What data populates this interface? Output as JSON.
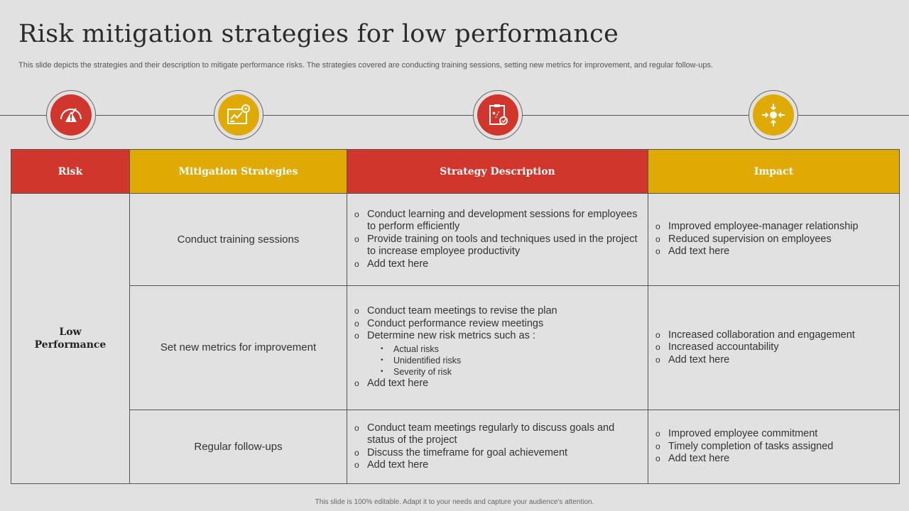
{
  "title": "Risk mitigation strategies for low performance",
  "subtitle": "This slide depicts the strategies and their description to mitigate performance risks. The strategies covered are conducting training sessions, setting new metrics for improvement, and regular follow-ups.",
  "colors": {
    "red": "#d0362b",
    "gold": "#e0aa05",
    "background": "#e1e1e1"
  },
  "icons": [
    "speedometer-warning-icon",
    "gear-board-icon",
    "clipboard-search-icon",
    "target-arrows-icon"
  ],
  "table": {
    "headers": {
      "risk": "Risk",
      "strategies": "Mitigation Strategies",
      "description": "Strategy Description",
      "impact": "Impact"
    },
    "risk": {
      "line1": "Low",
      "line2": "Performance"
    },
    "rows": [
      {
        "strategy": "Conduct training sessions",
        "description": [
          "Conduct learning and development sessions for employees to perform efficiently",
          "Provide training on tools and techniques used in the project to increase employee productivity",
          "Add text here"
        ],
        "impact": [
          "Improved employee-manager relationship",
          "Reduced supervision on employees",
          "Add text here"
        ]
      },
      {
        "strategy": "Set new metrics for improvement",
        "description": [
          "Conduct team meetings to revise the plan",
          "Conduct performance review meetings",
          "Determine new risk metrics such as :",
          "Add text here"
        ],
        "sub_items": [
          "Actual risks",
          "Unidentified  risks",
          "Severity  of risk"
        ],
        "impact": [
          "Increased collaboration and engagement",
          "Increased accountability",
          "Add text here"
        ]
      },
      {
        "strategy": "Regular follow-ups",
        "description": [
          "Conduct team meetings regularly to discuss goals and status of the project",
          "Discuss the timeframe for goal achievement",
          "Add text here"
        ],
        "impact": [
          "Improved employee commitment",
          "Timely completion of tasks assigned",
          "Add text here"
        ]
      }
    ]
  },
  "footer": "This slide is 100% editable. Adapt it to your needs and capture your audience's attention."
}
